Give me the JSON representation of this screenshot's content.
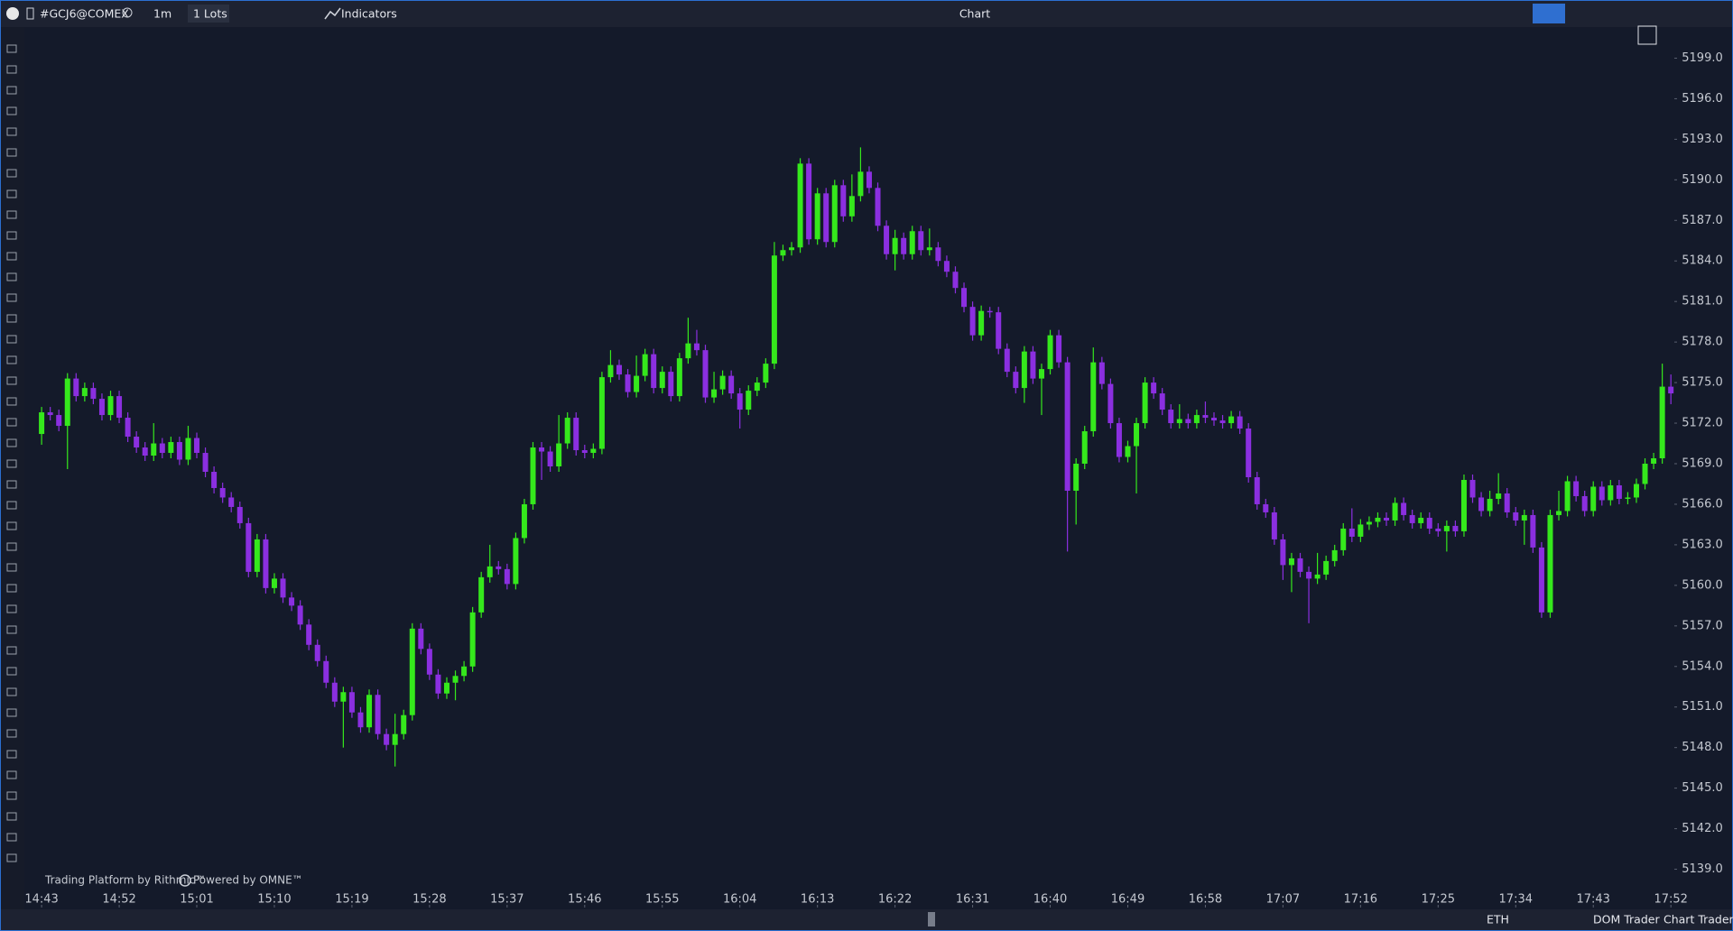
{
  "toolbar": {
    "symbol": "#GCJ6@COMEX",
    "interval": "1m",
    "lots": "1 Lots",
    "indicators": "Indicators",
    "window_title": "Chart"
  },
  "watermark": {
    "platform": "Trading Platform by Rithmic™",
    "powered": "Powered by OMNE™"
  },
  "status_bar": {
    "session": "ETH",
    "dom_trader": "DOM Trader",
    "chart_trader": "Chart Trader"
  },
  "chart_data": {
    "type": "candlestick",
    "up_color": "#35e81c",
    "down_color": "#8b2fe0",
    "grid": false,
    "open": [
      5171.2,
      5172.8,
      5172.6,
      5171.8,
      5175.3,
      5174.0,
      5174.6,
      5173.8,
      5172.6,
      5174.0,
      5172.4,
      5171.0,
      5170.2,
      5169.6,
      5170.5,
      5169.8,
      5170.6,
      5169.3,
      5170.9,
      5169.8,
      5168.4,
      5167.2,
      5166.5,
      5165.8,
      5164.6,
      5161.0,
      5163.4,
      5159.8,
      5160.5,
      5159.1,
      5158.5,
      5157.1,
      5155.6,
      5154.4,
      5152.8,
      5151.4,
      5152.1,
      5150.6,
      5149.5,
      5151.9,
      5149.0,
      5148.2,
      5149.0,
      5150.4,
      5156.8,
      5155.3,
      5153.4,
      5152.0,
      5152.8,
      5153.3,
      5154.0,
      5158.0,
      5160.6,
      5161.4,
      5161.2,
      5160.1,
      5163.5,
      5166.0,
      5170.2,
      5169.9,
      5168.8,
      5170.5,
      5172.4,
      5170.0,
      5169.8,
      5170.1,
      5175.4,
      5176.3,
      5175.6,
      5174.3,
      5175.5,
      5177.1,
      5174.6,
      5175.8,
      5174.0,
      5176.8,
      5177.9,
      5177.4,
      5173.9,
      5174.5,
      5175.5,
      5174.2,
      5173.0,
      5174.4,
      5175.0,
      5176.4,
      5184.4,
      5184.8,
      5185.0,
      5191.2,
      5185.6,
      5189.0,
      5185.4,
      5189.6,
      5187.3,
      5188.8,
      5190.6,
      5189.4,
      5186.6,
      5184.5,
      5185.7,
      5184.5,
      5186.2,
      5184.8,
      5185.0,
      5184.0,
      5183.2,
      5182.0,
      5180.6,
      5178.5,
      5180.3,
      5180.2,
      5177.5,
      5175.8,
      5174.6,
      5177.3,
      5175.3,
      5176.0,
      5178.5,
      5176.5,
      5167.0,
      5169.0,
      5171.4,
      5176.5,
      5174.9,
      5172.0,
      5169.5,
      5170.3,
      5172.0,
      5175.0,
      5174.2,
      5173.0,
      5172.0,
      5172.3,
      5172.0,
      5172.6,
      5172.4,
      5172.2,
      5172.0,
      5172.5,
      5171.6,
      5168.0,
      5166.0,
      5165.4,
      5163.4,
      5161.5,
      5162.0,
      5161.0,
      5160.5,
      5160.8,
      5161.8,
      5162.6,
      5164.2,
      5163.6,
      5164.5,
      5164.7,
      5165.0,
      5164.8,
      5166.1,
      5165.2,
      5164.6,
      5165.0,
      5164.2,
      5164.0,
      5164.4,
      5164.0,
      5167.8,
      5166.5,
      5165.5,
      5166.4,
      5166.8,
      5165.4,
      5164.8,
      5165.2,
      5162.8,
      5158.0,
      5165.2,
      5165.5,
      5167.7,
      5166.6,
      5165.5,
      5167.3,
      5166.3,
      5167.4,
      5166.4,
      5166.5,
      5167.5,
      5169.0,
      5169.4,
      5174.7
    ],
    "high": [
      5173.2,
      5173.2,
      5173.0,
      5175.7,
      5175.7,
      5175.0,
      5175.0,
      5174.2,
      5174.4,
      5174.4,
      5172.8,
      5171.4,
      5170.6,
      5172.0,
      5170.9,
      5171.0,
      5171.0,
      5171.8,
      5171.3,
      5170.2,
      5168.8,
      5167.6,
      5166.9,
      5166.2,
      5165.0,
      5163.8,
      5163.8,
      5160.9,
      5160.9,
      5159.5,
      5158.9,
      5157.5,
      5156.0,
      5154.8,
      5153.2,
      5152.5,
      5152.5,
      5151.0,
      5152.3,
      5152.3,
      5149.4,
      5150.5,
      5150.8,
      5157.2,
      5157.2,
      5155.7,
      5153.8,
      5153.2,
      5153.7,
      5154.4,
      5158.4,
      5161.0,
      5163.0,
      5161.8,
      5161.6,
      5163.9,
      5166.4,
      5170.6,
      5170.6,
      5170.3,
      5172.6,
      5172.8,
      5172.8,
      5170.4,
      5170.5,
      5175.8,
      5177.4,
      5176.7,
      5176.0,
      5177.0,
      5177.5,
      5177.5,
      5176.2,
      5176.2,
      5177.2,
      5179.8,
      5178.9,
      5177.8,
      5175.8,
      5175.9,
      5175.9,
      5174.6,
      5174.8,
      5175.4,
      5176.8,
      5185.4,
      5185.2,
      5185.4,
      5191.6,
      5191.6,
      5189.4,
      5189.4,
      5190.0,
      5190.0,
      5190.4,
      5192.4,
      5191.0,
      5189.8,
      5187.0,
      5186.3,
      5186.1,
      5186.6,
      5186.6,
      5186.4,
      5185.4,
      5184.4,
      5183.6,
      5182.4,
      5181.0,
      5180.7,
      5180.6,
      5180.6,
      5177.9,
      5176.2,
      5177.7,
      5177.7,
      5176.4,
      5178.9,
      5178.9,
      5176.9,
      5169.4,
      5171.8,
      5177.6,
      5176.9,
      5175.3,
      5172.4,
      5170.7,
      5172.4,
      5175.4,
      5175.4,
      5174.6,
      5173.4,
      5173.4,
      5172.7,
      5173.0,
      5173.6,
      5172.8,
      5172.6,
      5172.9,
      5172.9,
      5172.0,
      5168.4,
      5166.4,
      5165.8,
      5163.8,
      5162.4,
      5162.4,
      5161.4,
      5162.4,
      5162.2,
      5163.0,
      5164.6,
      5165.7,
      5164.9,
      5165.1,
      5165.4,
      5165.4,
      5166.5,
      5166.5,
      5165.6,
      5165.4,
      5165.4,
      5164.6,
      5164.8,
      5164.8,
      5168.2,
      5168.2,
      5166.9,
      5167.0,
      5168.3,
      5167.2,
      5165.8,
      5165.6,
      5165.6,
      5163.2,
      5165.6,
      5167.0,
      5168.1,
      5168.1,
      5167.0,
      5167.7,
      5167.7,
      5167.8,
      5167.8,
      5166.9,
      5167.9,
      5169.4,
      5169.8,
      5176.4,
      5175.6
    ],
    "low": [
      5170.4,
      5172.2,
      5171.4,
      5168.6,
      5173.6,
      5173.6,
      5173.4,
      5172.2,
      5172.2,
      5172.0,
      5170.6,
      5169.8,
      5169.2,
      5169.2,
      5169.4,
      5169.4,
      5168.9,
      5168.9,
      5169.4,
      5168.0,
      5166.8,
      5166.1,
      5165.4,
      5164.2,
      5160.6,
      5160.6,
      5159.4,
      5159.4,
      5158.7,
      5158.1,
      5156.7,
      5155.2,
      5154.0,
      5152.4,
      5151.0,
      5148.0,
      5150.2,
      5149.1,
      5149.1,
      5148.6,
      5147.8,
      5146.6,
      5148.6,
      5150.0,
      5154.9,
      5153.0,
      5151.6,
      5151.6,
      5151.5,
      5152.9,
      5153.6,
      5157.6,
      5160.2,
      5160.8,
      5159.7,
      5159.7,
      5163.1,
      5165.6,
      5167.8,
      5168.4,
      5168.4,
      5170.1,
      5169.6,
      5169.4,
      5169.4,
      5169.7,
      5175.0,
      5175.2,
      5173.9,
      5173.9,
      5175.1,
      5174.2,
      5174.2,
      5173.6,
      5173.6,
      5176.4,
      5177.0,
      5173.5,
      5173.5,
      5174.1,
      5173.8,
      5171.6,
      5172.6,
      5174.0,
      5174.6,
      5176.0,
      5184.0,
      5184.4,
      5184.6,
      5185.2,
      5185.2,
      5185.0,
      5185.0,
      5186.9,
      5186.9,
      5188.4,
      5189.0,
      5186.2,
      5184.1,
      5183.3,
      5184.1,
      5184.1,
      5184.4,
      5184.4,
      5183.6,
      5182.8,
      5181.6,
      5180.2,
      5178.1,
      5178.1,
      5179.8,
      5177.1,
      5175.4,
      5174.2,
      5173.5,
      5174.9,
      5172.6,
      5175.6,
      5176.1,
      5162.5,
      5164.5,
      5168.6,
      5171.0,
      5174.5,
      5171.6,
      5169.1,
      5169.1,
      5166.8,
      5171.6,
      5173.8,
      5172.6,
      5171.6,
      5171.6,
      5171.6,
      5171.6,
      5172.0,
      5171.8,
      5171.6,
      5171.6,
      5171.2,
      5167.6,
      5165.6,
      5165.0,
      5163.0,
      5160.4,
      5159.5,
      5160.6,
      5157.2,
      5160.1,
      5160.4,
      5161.4,
      5162.2,
      5163.2,
      5163.2,
      5164.1,
      5164.3,
      5164.4,
      5164.4,
      5164.8,
      5164.2,
      5164.2,
      5163.8,
      5163.6,
      5162.5,
      5163.6,
      5163.6,
      5166.1,
      5165.1,
      5165.1,
      5166.0,
      5165.0,
      5164.4,
      5163.0,
      5162.4,
      5157.6,
      5157.6,
      5164.8,
      5165.1,
      5166.2,
      5165.1,
      5165.1,
      5165.9,
      5165.9,
      5166.0,
      5166.0,
      5166.1,
      5167.1,
      5168.6,
      5169.0,
      5173.4
    ],
    "close": [
      5172.8,
      5172.6,
      5171.8,
      5175.3,
      5174.0,
      5174.6,
      5173.8,
      5172.6,
      5174.0,
      5172.4,
      5171.0,
      5170.2,
      5169.6,
      5170.5,
      5169.8,
      5170.6,
      5169.3,
      5170.9,
      5169.8,
      5168.4,
      5167.2,
      5166.5,
      5165.8,
      5164.6,
      5161.0,
      5163.4,
      5159.8,
      5160.5,
      5159.1,
      5158.5,
      5157.1,
      5155.6,
      5154.4,
      5152.8,
      5151.4,
      5152.1,
      5150.6,
      5149.5,
      5151.9,
      5149.0,
      5148.2,
      5149.0,
      5150.4,
      5156.8,
      5155.3,
      5153.4,
      5152.0,
      5152.8,
      5153.3,
      5154.0,
      5158.0,
      5160.6,
      5161.4,
      5161.2,
      5160.1,
      5163.5,
      5166.0,
      5170.2,
      5169.9,
      5168.8,
      5170.5,
      5172.4,
      5170.0,
      5169.8,
      5170.1,
      5175.4,
      5176.3,
      5175.6,
      5174.3,
      5175.5,
      5177.1,
      5174.6,
      5175.8,
      5174.0,
      5176.8,
      5177.9,
      5177.4,
      5173.9,
      5174.5,
      5175.5,
      5174.2,
      5173.0,
      5174.4,
      5175.0,
      5176.4,
      5184.4,
      5184.8,
      5185.0,
      5191.2,
      5185.6,
      5189.0,
      5185.4,
      5189.6,
      5187.3,
      5188.8,
      5190.6,
      5189.4,
      5186.6,
      5184.5,
      5185.7,
      5184.5,
      5186.2,
      5184.8,
      5185.0,
      5184.0,
      5183.2,
      5182.0,
      5180.6,
      5178.5,
      5180.3,
      5180.2,
      5177.5,
      5175.8,
      5174.6,
      5177.3,
      5175.3,
      5176.0,
      5178.5,
      5176.5,
      5167.0,
      5169.0,
      5171.4,
      5176.5,
      5174.9,
      5172.0,
      5169.5,
      5170.3,
      5172.0,
      5175.0,
      5174.2,
      5173.0,
      5172.0,
      5172.3,
      5172.0,
      5172.6,
      5172.4,
      5172.2,
      5172.0,
      5172.5,
      5171.6,
      5168.0,
      5166.0,
      5165.4,
      5163.4,
      5161.5,
      5162.0,
      5161.0,
      5160.5,
      5160.8,
      5161.8,
      5162.6,
      5164.2,
      5163.6,
      5164.5,
      5164.7,
      5165.0,
      5164.8,
      5166.1,
      5165.2,
      5164.6,
      5165.0,
      5164.2,
      5164.0,
      5164.4,
      5164.0,
      5167.8,
      5166.5,
      5165.5,
      5166.4,
      5166.8,
      5165.4,
      5164.8,
      5165.2,
      5162.8,
      5158.0,
      5165.2,
      5165.5,
      5167.7,
      5166.6,
      5165.5,
      5167.3,
      5166.3,
      5167.4,
      5166.4,
      5166.5,
      5167.5,
      5169.0,
      5169.4,
      5174.7,
      5174.2
    ],
    "xlim": [
      -2,
      189.4
    ],
    "xticks": [
      {
        "value": 0,
        "label": "14:43"
      },
      {
        "value": 9,
        "label": "14:52"
      },
      {
        "value": 18,
        "label": "15:01"
      },
      {
        "value": 27,
        "label": "15:10"
      },
      {
        "value": 36,
        "label": "15:19"
      },
      {
        "value": 45,
        "label": "15:28"
      },
      {
        "value": 54,
        "label": "15:37"
      },
      {
        "value": 63,
        "label": "15:46"
      },
      {
        "value": 72,
        "label": "15:55"
      },
      {
        "value": 81,
        "label": "16:04"
      },
      {
        "value": 90,
        "label": "16:13"
      },
      {
        "value": 99,
        "label": "16:22"
      },
      {
        "value": 108,
        "label": "16:31"
      },
      {
        "value": 117,
        "label": "16:40"
      },
      {
        "value": 126,
        "label": "16:49"
      },
      {
        "value": 135,
        "label": "16:58"
      },
      {
        "value": 144,
        "label": "17:07"
      },
      {
        "value": 153,
        "label": "17:16"
      },
      {
        "value": 162,
        "label": "17:25"
      },
      {
        "value": 171,
        "label": "17:34"
      },
      {
        "value": 180,
        "label": "17:43"
      },
      {
        "value": 189,
        "label": "17:52"
      }
    ],
    "ylim": [
      5136.3,
      5201.3
    ],
    "yticks": [
      {
        "value": 5139,
        "label": "5139.0"
      },
      {
        "value": 5142,
        "label": "5142.0"
      },
      {
        "value": 5145,
        "label": "5145.0"
      },
      {
        "value": 5148,
        "label": "5148.0"
      },
      {
        "value": 5151,
        "label": "5151.0"
      },
      {
        "value": 5154,
        "label": "5154.0"
      },
      {
        "value": 5157,
        "label": "5157.0"
      },
      {
        "value": 5160,
        "label": "5160.0"
      },
      {
        "value": 5163,
        "label": "5163.0"
      },
      {
        "value": 5166,
        "label": "5166.0"
      },
      {
        "value": 5169,
        "label": "5169.0"
      },
      {
        "value": 5172,
        "label": "5172.0"
      },
      {
        "value": 5175,
        "label": "5175.0"
      },
      {
        "value": 5178,
        "label": "5178.0"
      },
      {
        "value": 5181,
        "label": "5181.0"
      },
      {
        "value": 5184,
        "label": "5184.0"
      },
      {
        "value": 5187,
        "label": "5187.0"
      },
      {
        "value": 5190,
        "label": "5190.0"
      },
      {
        "value": 5193,
        "label": "5193.0"
      },
      {
        "value": 5196,
        "label": "5196.0"
      },
      {
        "value": 5199,
        "label": "5199.0"
      }
    ]
  }
}
